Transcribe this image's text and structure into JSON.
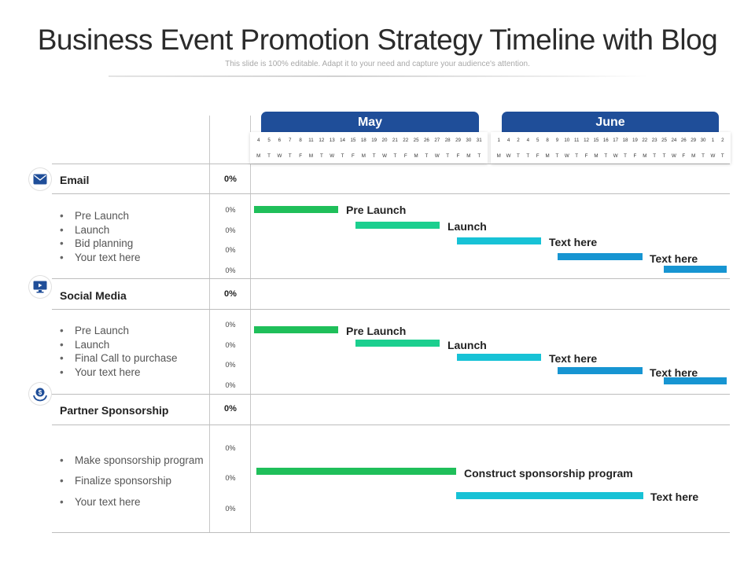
{
  "title": "Business Event Promotion Strategy Timeline with Blog",
  "subtitle": "This slide is 100% editable. Adapt it to your need and capture your audience's attention.",
  "months": [
    {
      "name": "May",
      "days": [
        "4",
        "5",
        "6",
        "7",
        "8",
        "11",
        "12",
        "13",
        "14",
        "15",
        "18",
        "19",
        "20",
        "21",
        "22",
        "25",
        "26",
        "27",
        "28",
        "29",
        "30",
        "31"
      ],
      "weekdays": [
        "M",
        "T",
        "W",
        "T",
        "F",
        "M",
        "T",
        "W",
        "T",
        "F",
        "M",
        "T",
        "W",
        "T",
        "F",
        "M",
        "T",
        "W",
        "T",
        "F",
        "M",
        "T"
      ]
    },
    {
      "name": "June",
      "days": [
        "1",
        "4",
        "2",
        "4",
        "5",
        "8",
        "9",
        "10",
        "11",
        "12",
        "15",
        "16",
        "17",
        "18",
        "19",
        "22",
        "23",
        "25",
        "24",
        "26",
        "29",
        "30",
        "1",
        "2"
      ],
      "weekdays": [
        "M",
        "W",
        "T",
        "T",
        "F",
        "M",
        "T",
        "W",
        "T",
        "F",
        "M",
        "T",
        "W",
        "T",
        "F",
        "M",
        "T",
        "T",
        "W",
        "F",
        "M",
        "T",
        "W",
        "T"
      ]
    }
  ],
  "categories": [
    {
      "name": "Email",
      "icon": "mail-icon",
      "percent": "0%",
      "items": [
        "Pre Launch",
        "Launch",
        "Bid planning",
        "Your text here"
      ],
      "item_percents": [
        "0%",
        "0%",
        "0%",
        "0%"
      ],
      "bar_labels": [
        "Pre Launch",
        "Launch",
        "Text here",
        "Text here"
      ]
    },
    {
      "name": "Social Media",
      "icon": "monitor-icon",
      "percent": "0%",
      "items": [
        "Pre Launch",
        "Launch",
        "Final Call to purchase",
        "Your text here"
      ],
      "item_percents": [
        "0%",
        "0%",
        "0%",
        "0%"
      ],
      "bar_labels": [
        "Pre Launch",
        "Launch",
        "Text here",
        "Text here"
      ]
    },
    {
      "name": "Partner Sponsorship",
      "icon": "dollar-hand-icon",
      "percent": "0%",
      "items": [
        "Make sponsorship program",
        "Finalize sponsorship",
        "Your text here"
      ],
      "item_percents": [
        "0%",
        "0%",
        "0%"
      ],
      "bar_labels": [
        "Construct sponsorship  program",
        "Text here"
      ]
    }
  ],
  "colors": {
    "header": "#1f4e99",
    "icon": "#1f4e99",
    "bar_green": "#1fbf5a",
    "bar_teal": "#1ccf8f",
    "bar_cyan": "#17c2d6",
    "bar_blue": "#1795d2"
  }
}
